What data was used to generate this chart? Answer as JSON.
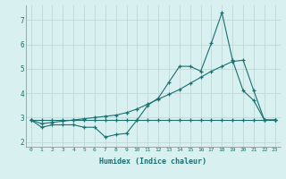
{
  "xlabel": "Humidex (Indice chaleur)",
  "background_color": "#d9f0f0",
  "grid_color": "#c0d8d8",
  "line_color": "#1a7070",
  "xlim": [
    -0.5,
    23.5
  ],
  "ylim": [
    1.8,
    7.6
  ],
  "xticks": [
    0,
    1,
    2,
    3,
    4,
    5,
    6,
    7,
    8,
    9,
    10,
    11,
    12,
    13,
    14,
    15,
    16,
    17,
    18,
    19,
    20,
    21,
    22,
    23
  ],
  "yticks": [
    2,
    3,
    4,
    5,
    6,
    7
  ],
  "line1_x": [
    0,
    1,
    2,
    3,
    4,
    5,
    6,
    7,
    8,
    9,
    10,
    11,
    12,
    13,
    14,
    15,
    16,
    17,
    18,
    19,
    20,
    21,
    22,
    23
  ],
  "line1_y": [
    2.9,
    2.6,
    2.7,
    2.7,
    2.7,
    2.6,
    2.6,
    2.2,
    2.3,
    2.35,
    2.9,
    3.5,
    3.8,
    4.45,
    5.1,
    5.1,
    4.9,
    6.05,
    7.3,
    5.35,
    4.1,
    3.7,
    2.9,
    2.9
  ],
  "line2_x": [
    0,
    1,
    2,
    3,
    4,
    5,
    6,
    7,
    8,
    9,
    10,
    11,
    12,
    13,
    14,
    15,
    16,
    17,
    18,
    19,
    20,
    21,
    22,
    23
  ],
  "line2_y": [
    2.9,
    2.75,
    2.8,
    2.85,
    2.9,
    2.95,
    3.0,
    3.05,
    3.1,
    3.2,
    3.35,
    3.55,
    3.75,
    3.95,
    4.15,
    4.4,
    4.65,
    4.9,
    5.1,
    5.3,
    5.35,
    4.1,
    2.9,
    2.9
  ],
  "line3_x": [
    0,
    1,
    2,
    3,
    4,
    5,
    6,
    7,
    8,
    9,
    10,
    11,
    12,
    13,
    14,
    15,
    16,
    17,
    18,
    19,
    20,
    21,
    22,
    23
  ],
  "line3_y": [
    2.9,
    2.9,
    2.9,
    2.9,
    2.9,
    2.9,
    2.9,
    2.9,
    2.9,
    2.9,
    2.9,
    2.9,
    2.9,
    2.9,
    2.9,
    2.9,
    2.9,
    2.9,
    2.9,
    2.9,
    2.9,
    2.9,
    2.9,
    2.9
  ]
}
